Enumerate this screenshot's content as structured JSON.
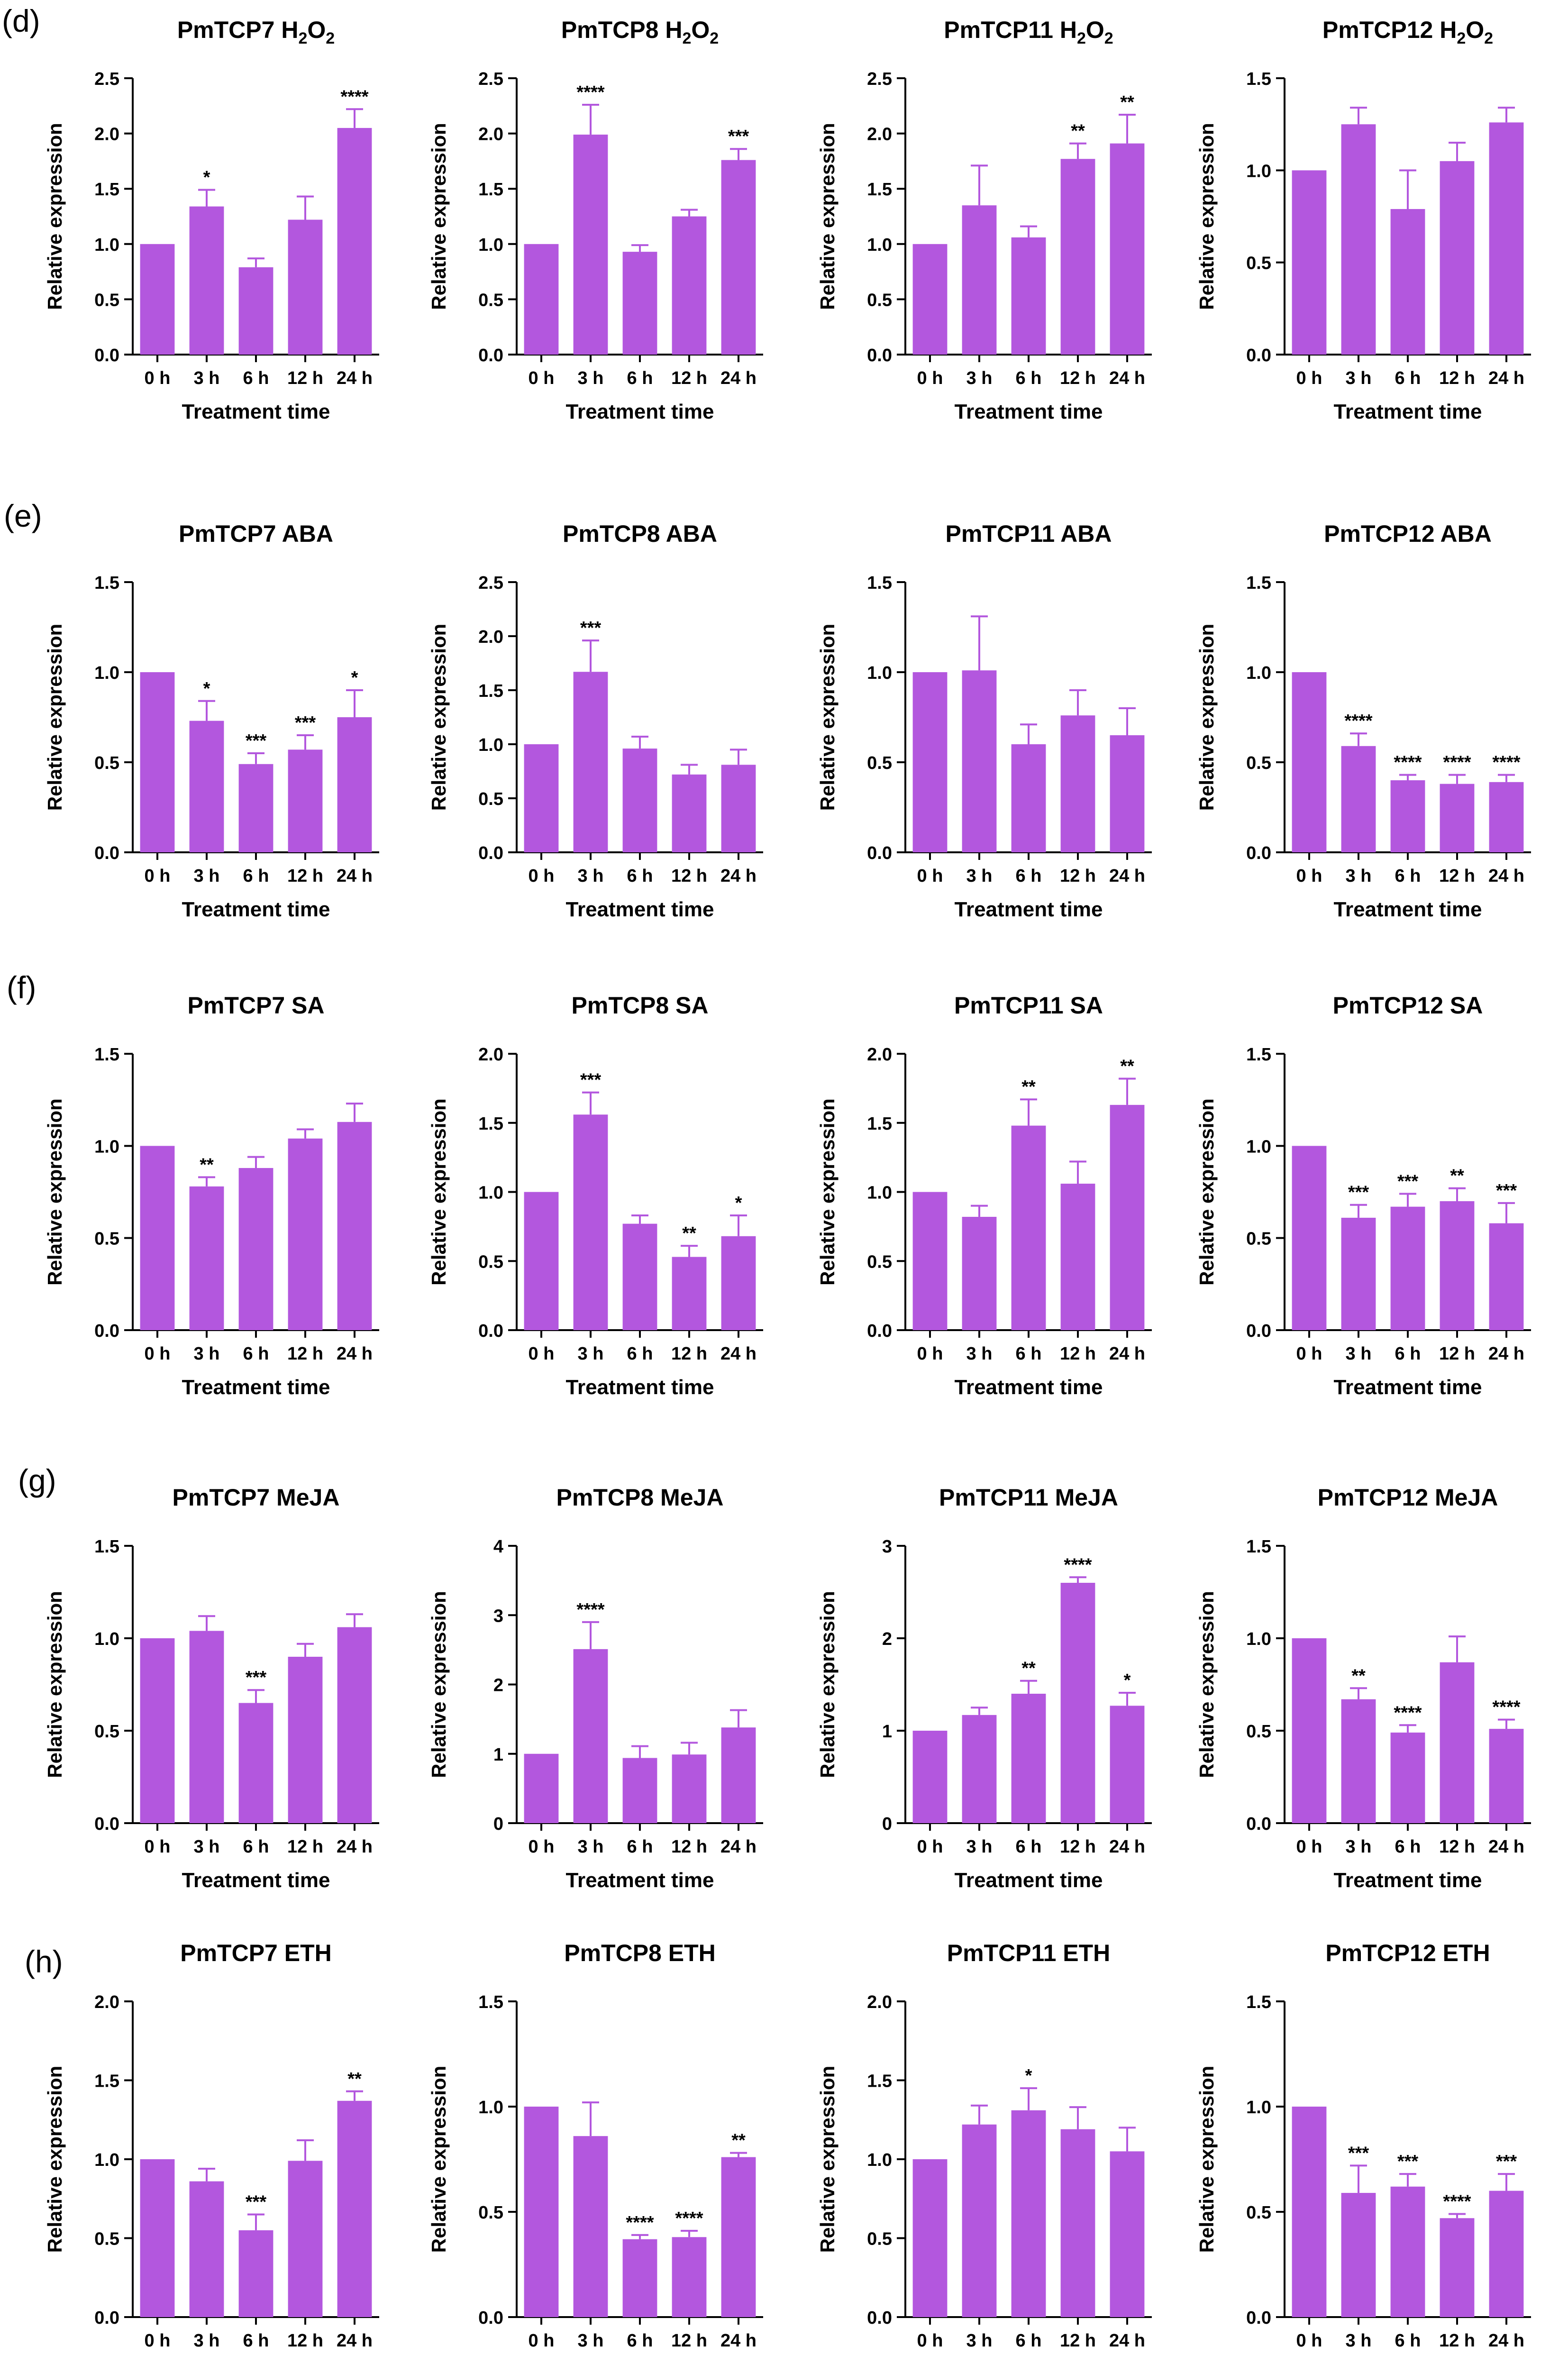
{
  "figure": {
    "bar_color": "#b357de",
    "axis_color": "#000000",
    "row_labels": [
      "(d)",
      "(e)",
      "(f)",
      "(g)",
      "(h)"
    ]
  },
  "chart_data": [
    {
      "type": "bar",
      "row": 0,
      "col": 0,
      "title": "PmTCP7 H2O2",
      "title_main": "PmTCP7 H",
      "title_sub1": "2",
      "title_mid": "O",
      "title_sub2": "2",
      "categories": [
        "0 h",
        "3 h",
        "6 h",
        "12 h",
        "24 h"
      ],
      "values": [
        1.0,
        1.34,
        0.79,
        1.22,
        2.05
      ],
      "errors": [
        0,
        0.15,
        0.08,
        0.21,
        0.17
      ],
      "significance": [
        "",
        "*",
        "",
        "",
        "****"
      ],
      "ylim": [
        0,
        2.5
      ],
      "yticks": [
        "0.0",
        "0.5",
        "1.0",
        "1.5",
        "2.0",
        "2.5"
      ],
      "xlabel": "Treatment time",
      "ylabel": "Relative expression"
    },
    {
      "type": "bar",
      "row": 0,
      "col": 1,
      "title": "PmTCP8 H2O2",
      "title_main": "PmTCP8 H",
      "title_sub1": "2",
      "title_mid": "O",
      "title_sub2": "2",
      "categories": [
        "0 h",
        "3 h",
        "6 h",
        "12 h",
        "24 h"
      ],
      "values": [
        1.0,
        1.99,
        0.93,
        1.25,
        1.76
      ],
      "errors": [
        0,
        0.27,
        0.06,
        0.06,
        0.1
      ],
      "significance": [
        "",
        "****",
        "",
        "",
        "***"
      ],
      "ylim": [
        0,
        2.5
      ],
      "yticks": [
        "0.0",
        "0.5",
        "1.0",
        "1.5",
        "2.0",
        "2.5"
      ],
      "xlabel": "Treatment time",
      "ylabel": "Relative expression"
    },
    {
      "type": "bar",
      "row": 0,
      "col": 2,
      "title": "PmTCP11 H2O2",
      "title_main": "PmTCP11 H",
      "title_sub1": "2",
      "title_mid": "O",
      "title_sub2": "2",
      "categories": [
        "0 h",
        "3 h",
        "6 h",
        "12 h",
        "24 h"
      ],
      "values": [
        1.0,
        1.35,
        1.06,
        1.77,
        1.91
      ],
      "errors": [
        0,
        0.36,
        0.1,
        0.14,
        0.26
      ],
      "significance": [
        "",
        "",
        "",
        "**",
        "**"
      ],
      "ylim": [
        0,
        2.5
      ],
      "yticks": [
        "0.0",
        "0.5",
        "1.0",
        "1.5",
        "2.0",
        "2.5"
      ],
      "xlabel": "Treatment time",
      "ylabel": "Relative expression"
    },
    {
      "type": "bar",
      "row": 0,
      "col": 3,
      "title": "PmTCP12 H2O2",
      "title_main": "PmTCP12 H",
      "title_sub1": "2",
      "title_mid": "O",
      "title_sub2": "2",
      "categories": [
        "0 h",
        "3 h",
        "6 h",
        "12 h",
        "24 h"
      ],
      "values": [
        1.0,
        1.25,
        0.79,
        1.05,
        1.26
      ],
      "errors": [
        0,
        0.09,
        0.21,
        0.1,
        0.08
      ],
      "significance": [
        "",
        "",
        "",
        "",
        ""
      ],
      "ylim": [
        0,
        1.5
      ],
      "yticks": [
        "0.0",
        "0.5",
        "1.0",
        "1.5"
      ],
      "xlabel": "Treatment time",
      "ylabel": "Relative expression"
    },
    {
      "type": "bar",
      "row": 1,
      "col": 0,
      "title": "PmTCP7 ABA",
      "categories": [
        "0 h",
        "3 h",
        "6 h",
        "12 h",
        "24 h"
      ],
      "values": [
        1.0,
        0.73,
        0.49,
        0.57,
        0.75
      ],
      "errors": [
        0,
        0.11,
        0.06,
        0.08,
        0.15
      ],
      "significance": [
        "",
        "*",
        "***",
        "***",
        "*"
      ],
      "ylim": [
        0,
        1.5
      ],
      "yticks": [
        "0.0",
        "0.5",
        "1.0",
        "1.5"
      ],
      "xlabel": "Treatment time",
      "ylabel": "Relative expression"
    },
    {
      "type": "bar",
      "row": 1,
      "col": 1,
      "title": "PmTCP8 ABA",
      "categories": [
        "0 h",
        "3 h",
        "6 h",
        "12 h",
        "24 h"
      ],
      "values": [
        1.0,
        1.67,
        0.96,
        0.72,
        0.81
      ],
      "errors": [
        0,
        0.29,
        0.11,
        0.09,
        0.14
      ],
      "significance": [
        "",
        "***",
        "",
        "",
        ""
      ],
      "ylim": [
        0,
        2.5
      ],
      "yticks": [
        "0.0",
        "0.5",
        "1.0",
        "1.5",
        "2.0",
        "2.5"
      ],
      "xlabel": "Treatment time",
      "ylabel": "Relative expression"
    },
    {
      "type": "bar",
      "row": 1,
      "col": 2,
      "title": "PmTCP11 ABA",
      "categories": [
        "0 h",
        "3 h",
        "6 h",
        "12 h",
        "24 h"
      ],
      "values": [
        1.0,
        1.01,
        0.6,
        0.76,
        0.65
      ],
      "errors": [
        0,
        0.3,
        0.11,
        0.14,
        0.15
      ],
      "significance": [
        "",
        "",
        "",
        "",
        ""
      ],
      "ylim": [
        0,
        1.5
      ],
      "yticks": [
        "0.0",
        "0.5",
        "1.0",
        "1.5"
      ],
      "xlabel": "Treatment time",
      "ylabel": "Relative expression"
    },
    {
      "type": "bar",
      "row": 1,
      "col": 3,
      "title": "PmTCP12 ABA",
      "categories": [
        "0 h",
        "3 h",
        "6 h",
        "12 h",
        "24 h"
      ],
      "values": [
        1.0,
        0.59,
        0.4,
        0.38,
        0.39
      ],
      "errors": [
        0,
        0.07,
        0.03,
        0.05,
        0.04
      ],
      "significance": [
        "",
        "****",
        "****",
        "****",
        "****"
      ],
      "ylim": [
        0,
        1.5
      ],
      "yticks": [
        "0.0",
        "0.5",
        "1.0",
        "1.5"
      ],
      "xlabel": "Treatment time",
      "ylabel": "Relative expression"
    },
    {
      "type": "bar",
      "row": 2,
      "col": 0,
      "title": "PmTCP7 SA",
      "categories": [
        "0 h",
        "3 h",
        "6 h",
        "12 h",
        "24 h"
      ],
      "values": [
        1.0,
        0.78,
        0.88,
        1.04,
        1.13
      ],
      "errors": [
        0,
        0.05,
        0.06,
        0.05,
        0.1
      ],
      "significance": [
        "",
        "**",
        "",
        "",
        ""
      ],
      "ylim": [
        0,
        1.5
      ],
      "yticks": [
        "0.0",
        "0.5",
        "1.0",
        "1.5"
      ],
      "xlabel": "Treatment time",
      "ylabel": "Relative expression"
    },
    {
      "type": "bar",
      "row": 2,
      "col": 1,
      "title": "PmTCP8 SA",
      "categories": [
        "0 h",
        "3 h",
        "6 h",
        "12 h",
        "24 h"
      ],
      "values": [
        1.0,
        1.56,
        0.77,
        0.53,
        0.68
      ],
      "errors": [
        0,
        0.16,
        0.06,
        0.08,
        0.15
      ],
      "significance": [
        "",
        "***",
        "",
        "**",
        "*"
      ],
      "ylim": [
        0,
        2.0
      ],
      "yticks": [
        "0.0",
        "0.5",
        "1.0",
        "1.5",
        "2.0"
      ],
      "xlabel": "Treatment time",
      "ylabel": "Relative expression"
    },
    {
      "type": "bar",
      "row": 2,
      "col": 2,
      "title": "PmTCP11 SA",
      "categories": [
        "0 h",
        "3 h",
        "6 h",
        "12 h",
        "24 h"
      ],
      "values": [
        1.0,
        0.82,
        1.48,
        1.06,
        1.63
      ],
      "errors": [
        0,
        0.08,
        0.19,
        0.16,
        0.19
      ],
      "significance": [
        "",
        "",
        "**",
        "",
        "**"
      ],
      "ylim": [
        0,
        2.0
      ],
      "yticks": [
        "0.0",
        "0.5",
        "1.0",
        "1.5",
        "2.0"
      ],
      "xlabel": "Treatment time",
      "ylabel": "Relative expression"
    },
    {
      "type": "bar",
      "row": 2,
      "col": 3,
      "title": "PmTCP12 SA",
      "categories": [
        "0 h",
        "3 h",
        "6 h",
        "12 h",
        "24 h"
      ],
      "values": [
        1.0,
        0.61,
        0.67,
        0.7,
        0.58
      ],
      "errors": [
        0,
        0.07,
        0.07,
        0.07,
        0.11
      ],
      "significance": [
        "",
        "***",
        "***",
        "**",
        "***"
      ],
      "ylim": [
        0,
        1.5
      ],
      "yticks": [
        "0.0",
        "0.5",
        "1.0",
        "1.5"
      ],
      "xlabel": "Treatment time",
      "ylabel": "Relative expression"
    },
    {
      "type": "bar",
      "row": 3,
      "col": 0,
      "title": "PmTCP7 MeJA",
      "categories": [
        "0 h",
        "3 h",
        "6 h",
        "12 h",
        "24 h"
      ],
      "values": [
        1.0,
        1.04,
        0.65,
        0.9,
        1.06
      ],
      "errors": [
        0,
        0.08,
        0.07,
        0.07,
        0.07
      ],
      "significance": [
        "",
        "",
        "***",
        "",
        ""
      ],
      "ylim": [
        0,
        1.5
      ],
      "yticks": [
        "0.0",
        "0.5",
        "1.0",
        "1.5"
      ],
      "xlabel": "Treatment time",
      "ylabel": "Relative expression"
    },
    {
      "type": "bar",
      "row": 3,
      "col": 1,
      "title": "PmTCP8 MeJA",
      "categories": [
        "0 h",
        "3 h",
        "6 h",
        "12 h",
        "24 h"
      ],
      "values": [
        1.0,
        2.51,
        0.94,
        0.99,
        1.38
      ],
      "errors": [
        0,
        0.39,
        0.17,
        0.17,
        0.25
      ],
      "significance": [
        "",
        "****",
        "",
        "",
        ""
      ],
      "ylim": [
        0,
        4
      ],
      "yticks": [
        "0",
        "1",
        "2",
        "3",
        "4"
      ],
      "xlabel": "Treatment time",
      "ylabel": "Relative expression"
    },
    {
      "type": "bar",
      "row": 3,
      "col": 2,
      "title": "PmTCP11 MeJA",
      "categories": [
        "0 h",
        "3 h",
        "6 h",
        "12 h",
        "24 h"
      ],
      "values": [
        1.0,
        1.17,
        1.4,
        2.6,
        1.27
      ],
      "errors": [
        0,
        0.08,
        0.14,
        0.06,
        0.14
      ],
      "significance": [
        "",
        "",
        "**",
        "****",
        "*"
      ],
      "ylim": [
        0,
        3
      ],
      "yticks": [
        "0",
        "1",
        "2",
        "3"
      ],
      "xlabel": "Treatment time",
      "ylabel": "Relative expression"
    },
    {
      "type": "bar",
      "row": 3,
      "col": 3,
      "title": "PmTCP12 MeJA",
      "categories": [
        "0 h",
        "3 h",
        "6 h",
        "12 h",
        "24 h"
      ],
      "values": [
        1.0,
        0.67,
        0.49,
        0.87,
        0.51
      ],
      "errors": [
        0,
        0.06,
        0.04,
        0.14,
        0.05
      ],
      "significance": [
        "",
        "**",
        "****",
        "",
        "****"
      ],
      "ylim": [
        0,
        1.5
      ],
      "yticks": [
        "0.0",
        "0.5",
        "1.0",
        "1.5"
      ],
      "xlabel": "Treatment time",
      "ylabel": "Relative expression"
    },
    {
      "type": "bar",
      "row": 4,
      "col": 0,
      "title": "PmTCP7 ETH",
      "categories": [
        "0 h",
        "3 h",
        "6 h",
        "12 h",
        "24 h"
      ],
      "values": [
        1.0,
        0.86,
        0.55,
        0.99,
        1.37
      ],
      "errors": [
        0,
        0.08,
        0.1,
        0.13,
        0.06
      ],
      "significance": [
        "",
        "",
        "***",
        "",
        "**"
      ],
      "ylim": [
        0,
        2.0
      ],
      "yticks": [
        "0.0",
        "0.5",
        "1.0",
        "1.5",
        "2.0"
      ],
      "xlabel": "Treatment time",
      "ylabel": "Relative expression"
    },
    {
      "type": "bar",
      "row": 4,
      "col": 1,
      "title": "PmTCP8 ETH",
      "categories": [
        "0 h",
        "3 h",
        "6 h",
        "12 h",
        "24 h"
      ],
      "values": [
        1.0,
        0.86,
        0.37,
        0.38,
        0.76
      ],
      "errors": [
        0,
        0.16,
        0.02,
        0.03,
        0.02
      ],
      "significance": [
        "",
        "",
        "****",
        "****",
        "**"
      ],
      "ylim": [
        0,
        1.5
      ],
      "yticks": [
        "0.0",
        "0.5",
        "1.0",
        "1.5"
      ],
      "xlabel": "Treatment time",
      "ylabel": "Relative expression"
    },
    {
      "type": "bar",
      "row": 4,
      "col": 2,
      "title": "PmTCP11 ETH",
      "categories": [
        "0 h",
        "3 h",
        "6 h",
        "12 h",
        "24 h"
      ],
      "values": [
        1.0,
        1.22,
        1.31,
        1.19,
        1.05
      ],
      "errors": [
        0,
        0.12,
        0.14,
        0.14,
        0.15
      ],
      "significance": [
        "",
        "",
        "*",
        "",
        ""
      ],
      "ylim": [
        0,
        2.0
      ],
      "yticks": [
        "0.0",
        "0.5",
        "1.0",
        "1.5",
        "2.0"
      ],
      "xlabel": "Treatment time",
      "ylabel": "Relative expression"
    },
    {
      "type": "bar",
      "row": 4,
      "col": 3,
      "title": "PmTCP12 ETH",
      "categories": [
        "0 h",
        "3 h",
        "6 h",
        "12 h",
        "24 h"
      ],
      "values": [
        1.0,
        0.59,
        0.62,
        0.47,
        0.6
      ],
      "errors": [
        0,
        0.13,
        0.06,
        0.02,
        0.08
      ],
      "significance": [
        "",
        "***",
        "***",
        "****",
        "***"
      ],
      "ylim": [
        0,
        1.5
      ],
      "yticks": [
        "0.0",
        "0.5",
        "1.0",
        "1.5"
      ],
      "xlabel": "Treatment time",
      "ylabel": "Relative expression"
    }
  ]
}
